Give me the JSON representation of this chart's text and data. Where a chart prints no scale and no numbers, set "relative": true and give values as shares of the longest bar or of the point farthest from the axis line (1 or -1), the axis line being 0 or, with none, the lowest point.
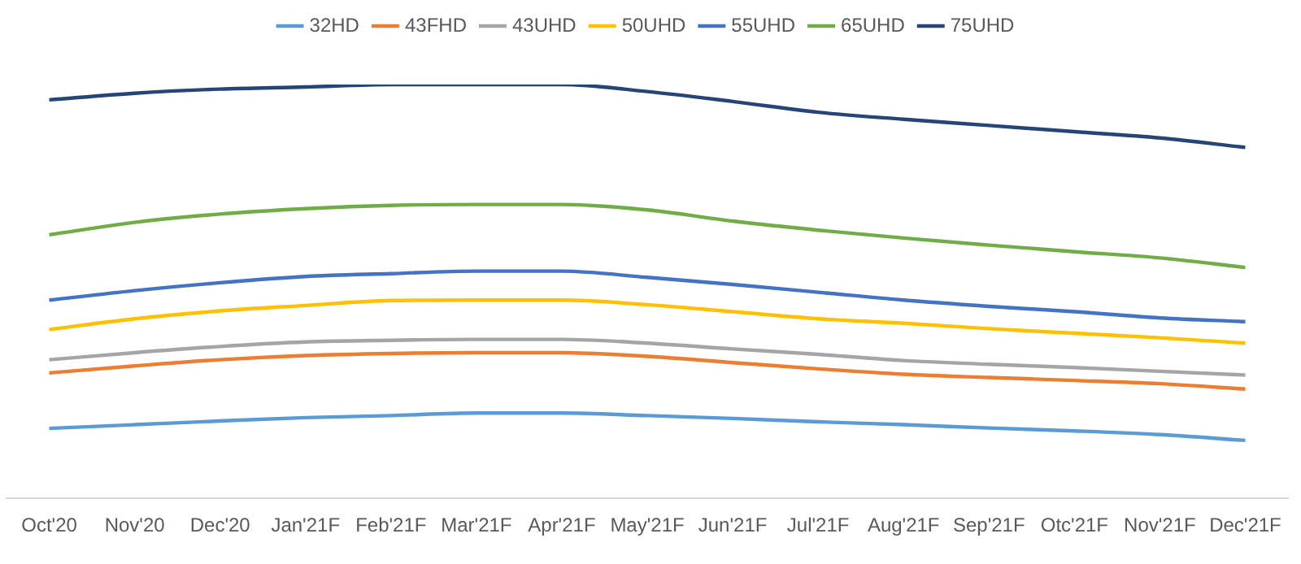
{
  "chart_data": {
    "type": "line",
    "relative": true,
    "legend": "top",
    "grid": false,
    "marker": "none",
    "line_style": "solid",
    "categories": [
      "Oct'20",
      "Nov'20",
      "Dec'20",
      "Jan'21F",
      "Feb'21F",
      "Mar'21F",
      "Apr'21F",
      "May'21F",
      "Jun'21F",
      "Jul'21F",
      "Aug'21F",
      "Sep'21F",
      "Otc'21F",
      "Nov'21F",
      "Dec'21F"
    ],
    "series": [
      {
        "name": "32HD",
        "color": "#5b9bd5",
        "values": [
          0.169,
          0.178,
          0.187,
          0.195,
          0.2,
          0.206,
          0.206,
          0.2,
          0.193,
          0.185,
          0.178,
          0.17,
          0.163,
          0.154,
          0.14
        ]
      },
      {
        "name": "43FHD",
        "color": "#ed7d31",
        "values": [
          0.303,
          0.32,
          0.335,
          0.345,
          0.35,
          0.352,
          0.352,
          0.343,
          0.328,
          0.313,
          0.3,
          0.292,
          0.285,
          0.277,
          0.264
        ]
      },
      {
        "name": "43UHD",
        "color": "#a5a5a5",
        "values": [
          0.335,
          0.352,
          0.367,
          0.378,
          0.382,
          0.384,
          0.384,
          0.375,
          0.361,
          0.348,
          0.333,
          0.324,
          0.316,
          0.307,
          0.298
        ]
      },
      {
        "name": "50UHD",
        "color": "#ffc000",
        "values": [
          0.408,
          0.434,
          0.453,
          0.466,
          0.478,
          0.479,
          0.479,
          0.468,
          0.451,
          0.434,
          0.423,
          0.41,
          0.399,
          0.388,
          0.375
        ]
      },
      {
        "name": "55UHD",
        "color": "#4472c4",
        "values": [
          0.479,
          0.502,
          0.521,
          0.536,
          0.543,
          0.549,
          0.549,
          0.534,
          0.517,
          0.498,
          0.479,
          0.464,
          0.451,
          0.436,
          0.427
        ]
      },
      {
        "name": "65UHD",
        "color": "#70ad47",
        "values": [
          0.637,
          0.667,
          0.687,
          0.7,
          0.708,
          0.71,
          0.71,
          0.697,
          0.67,
          0.648,
          0.629,
          0.612,
          0.596,
          0.581,
          0.558
        ]
      },
      {
        "name": "75UHD",
        "color": "#264478",
        "values": [
          0.963,
          0.979,
          0.989,
          0.994,
          1,
          1,
          1,
          0.983,
          0.959,
          0.933,
          0.916,
          0.901,
          0.886,
          0.871,
          0.848
        ]
      }
    ]
  }
}
